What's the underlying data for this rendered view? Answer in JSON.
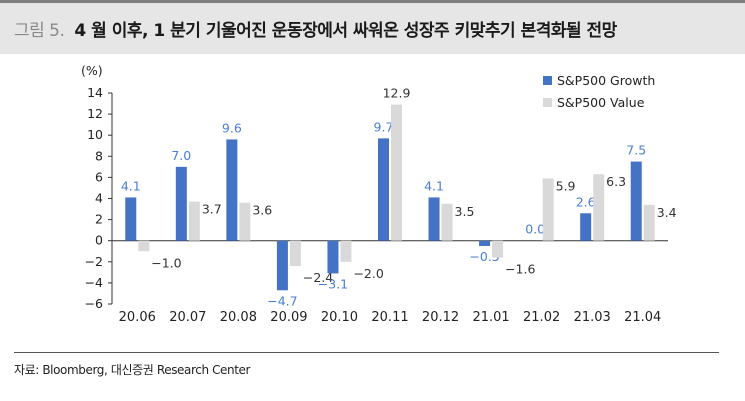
{
  "header": {
    "figure_number": "그림 5.",
    "title": "4 월 이후, 1 분기 기울어진 운동장에서 싸워온 성장주 키맞추기 본격화될 전망"
  },
  "chart_data": {
    "type": "bar",
    "unit_label": "(%)",
    "categories": [
      "20.06",
      "20.07",
      "20.08",
      "20.09",
      "20.10",
      "20.11",
      "20.12",
      "21.01",
      "21.02",
      "21.03",
      "21.04"
    ],
    "series": [
      {
        "name": "S&P500 Growth",
        "color": "#4472c4",
        "label_color": "#4a7ed6",
        "values": [
          4.1,
          7.0,
          9.6,
          -4.7,
          -3.1,
          9.7,
          4.1,
          -0.5,
          0.0,
          2.6,
          7.5
        ],
        "labels": [
          "4.1",
          "7.0",
          "9.6",
          "−4.7",
          "−3.1",
          "9.7",
          "4.1",
          "−0.5",
          "0.0",
          "2.6",
          "7.5"
        ]
      },
      {
        "name": "S&P500 Value",
        "color": "#d9d9d9",
        "label_color": "#333333",
        "values": [
          -1.0,
          3.7,
          3.6,
          -2.4,
          -2.0,
          12.9,
          3.5,
          -1.6,
          5.9,
          6.3,
          3.4
        ],
        "labels": [
          "−1.0",
          "3.7",
          "3.6",
          "−2.4",
          "−2.0",
          "12.9",
          "3.5",
          "−1.6",
          "5.9",
          "6.3",
          "3.4"
        ]
      }
    ],
    "ylim": [
      -6,
      14
    ],
    "yticks": [
      14,
      12,
      10,
      8,
      6,
      4,
      2,
      0,
      -2,
      -4,
      -6
    ],
    "ytick_labels": [
      "14",
      "12",
      "10",
      "8",
      "6",
      "4",
      "2",
      "0",
      "−2",
      "−4",
      "−6"
    ],
    "legend_position": "top-right",
    "grid": false
  },
  "footer": {
    "source": "자료: Bloomberg, 대신증권 Research Center"
  }
}
